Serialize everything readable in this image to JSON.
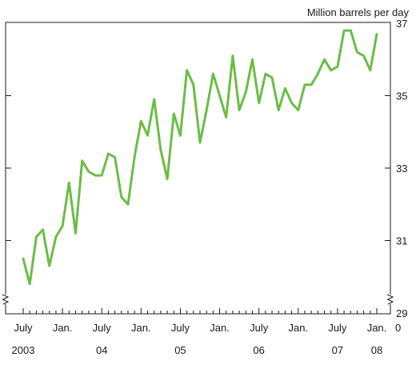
{
  "chart_data": {
    "type": "line",
    "ylabel": "Million barrels per day",
    "ylim": [
      29,
      37
    ],
    "yticks": [
      29,
      31,
      33,
      35,
      37
    ],
    "y_break_label": "0",
    "x_range": [
      "2003-07",
      "2008-01"
    ],
    "x_month_labels": [
      {
        "month": "2003-07",
        "text": "July"
      },
      {
        "month": "2004-01",
        "text": "Jan."
      },
      {
        "month": "2004-07",
        "text": "July"
      },
      {
        "month": "2005-01",
        "text": "Jan."
      },
      {
        "month": "2005-07",
        "text": "July"
      },
      {
        "month": "2006-01",
        "text": "Jan."
      },
      {
        "month": "2006-07",
        "text": "July"
      },
      {
        "month": "2007-01",
        "text": "Jan."
      },
      {
        "month": "2007-07",
        "text": "July"
      },
      {
        "month": "2008-01",
        "text": "Jan."
      }
    ],
    "x_year_labels": [
      {
        "month": "2003-07",
        "text": "2003"
      },
      {
        "month": "2004-07",
        "text": "04"
      },
      {
        "month": "2005-07",
        "text": "05"
      },
      {
        "month": "2006-07",
        "text": "06"
      },
      {
        "month": "2007-07",
        "text": "07"
      },
      {
        "month": "2008-01",
        "text": "08"
      }
    ],
    "series": [
      {
        "color": "#6cbd45",
        "points": [
          [
            "2003-07",
            30.5
          ],
          [
            "2003-08",
            29.8
          ],
          [
            "2003-09",
            31.1
          ],
          [
            "2003-10",
            31.3
          ],
          [
            "2003-11",
            30.3
          ],
          [
            "2003-12",
            31.1
          ],
          [
            "2004-01",
            31.4
          ],
          [
            "2004-02",
            32.6
          ],
          [
            "2004-03",
            31.2
          ],
          [
            "2004-04",
            33.2
          ],
          [
            "2004-05",
            32.9
          ],
          [
            "2004-06",
            32.8
          ],
          [
            "2004-07",
            32.8
          ],
          [
            "2004-08",
            33.4
          ],
          [
            "2004-09",
            33.3
          ],
          [
            "2004-10",
            32.2
          ],
          [
            "2004-11",
            32.0
          ],
          [
            "2004-12",
            33.3
          ],
          [
            "2005-01",
            34.3
          ],
          [
            "2005-02",
            33.9
          ],
          [
            "2005-03",
            34.9
          ],
          [
            "2005-04",
            33.5
          ],
          [
            "2005-05",
            32.7
          ],
          [
            "2005-06",
            34.5
          ],
          [
            "2005-07",
            33.9
          ],
          [
            "2005-08",
            35.7
          ],
          [
            "2005-09",
            35.3
          ],
          [
            "2005-10",
            33.7
          ],
          [
            "2005-11",
            34.6
          ],
          [
            "2005-12",
            35.6
          ],
          [
            "2006-01",
            35.0
          ],
          [
            "2006-02",
            34.4
          ],
          [
            "2006-03",
            36.1
          ],
          [
            "2006-04",
            34.6
          ],
          [
            "2006-05",
            35.1
          ],
          [
            "2006-06",
            36.0
          ],
          [
            "2006-07",
            34.8
          ],
          [
            "2006-08",
            35.6
          ],
          [
            "2006-09",
            35.5
          ],
          [
            "2006-10",
            34.6
          ],
          [
            "2006-11",
            35.2
          ],
          [
            "2006-12",
            34.8
          ],
          [
            "2007-01",
            34.6
          ],
          [
            "2007-02",
            35.3
          ],
          [
            "2007-03",
            35.3
          ],
          [
            "2007-04",
            35.6
          ],
          [
            "2007-05",
            36.0
          ],
          [
            "2007-06",
            35.7
          ],
          [
            "2007-07",
            35.8
          ],
          [
            "2007-08",
            36.8
          ],
          [
            "2007-09",
            36.8
          ],
          [
            "2007-10",
            36.2
          ],
          [
            "2007-11",
            36.1
          ],
          [
            "2007-12",
            35.7
          ],
          [
            "2008-01",
            36.7
          ]
        ]
      }
    ]
  }
}
